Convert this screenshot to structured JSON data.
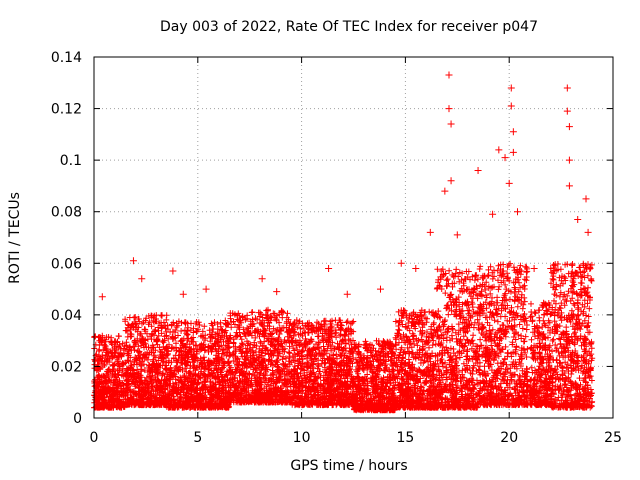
{
  "chart_data": {
    "type": "scatter",
    "title": "Day 003 of 2022, Rate Of TEC Index for receiver p047",
    "xlabel": "GPS time / hours",
    "ylabel": "ROTI / TECUs",
    "xlim": [
      0,
      25
    ],
    "ylim": [
      0,
      0.14
    ],
    "x_ticks": [
      0,
      5,
      10,
      15,
      20,
      25
    ],
    "x_tick_labels": [
      "0",
      "5",
      "10",
      "15",
      "20",
      "25"
    ],
    "y_ticks": [
      0,
      0.02,
      0.04,
      0.06,
      0.08,
      0.1,
      0.12,
      0.14
    ],
    "y_tick_labels": [
      "0",
      "0.02",
      "0.04",
      "0.06",
      "0.08",
      "0.1",
      "0.12",
      "0.14"
    ],
    "grid": true,
    "marker": "+",
    "series": [
      {
        "name": "ROTI",
        "color": "#ff0000",
        "notable_points": [
          {
            "x": 0.4,
            "y": 0.047
          },
          {
            "x": 1.9,
            "y": 0.061
          },
          {
            "x": 2.3,
            "y": 0.054
          },
          {
            "x": 3.8,
            "y": 0.057
          },
          {
            "x": 4.3,
            "y": 0.048
          },
          {
            "x": 5.4,
            "y": 0.05
          },
          {
            "x": 8.1,
            "y": 0.054
          },
          {
            "x": 8.8,
            "y": 0.049
          },
          {
            "x": 11.3,
            "y": 0.058
          },
          {
            "x": 12.2,
            "y": 0.048
          },
          {
            "x": 13.8,
            "y": 0.05
          },
          {
            "x": 14.8,
            "y": 0.06
          },
          {
            "x": 15.5,
            "y": 0.058
          },
          {
            "x": 16.2,
            "y": 0.072
          },
          {
            "x": 16.9,
            "y": 0.088
          },
          {
            "x": 17.1,
            "y": 0.133
          },
          {
            "x": 17.1,
            "y": 0.12
          },
          {
            "x": 17.2,
            "y": 0.114
          },
          {
            "x": 17.2,
            "y": 0.092
          },
          {
            "x": 17.5,
            "y": 0.071
          },
          {
            "x": 18.5,
            "y": 0.096
          },
          {
            "x": 19.2,
            "y": 0.079
          },
          {
            "x": 19.5,
            "y": 0.104
          },
          {
            "x": 19.8,
            "y": 0.101
          },
          {
            "x": 20.1,
            "y": 0.128
          },
          {
            "x": 20.1,
            "y": 0.121
          },
          {
            "x": 20.2,
            "y": 0.111
          },
          {
            "x": 20.2,
            "y": 0.103
          },
          {
            "x": 20.0,
            "y": 0.091
          },
          {
            "x": 20.4,
            "y": 0.08
          },
          {
            "x": 21.2,
            "y": 0.058
          },
          {
            "x": 22.0,
            "y": 0.058
          },
          {
            "x": 22.8,
            "y": 0.128
          },
          {
            "x": 22.8,
            "y": 0.119
          },
          {
            "x": 22.9,
            "y": 0.113
          },
          {
            "x": 22.9,
            "y": 0.1
          },
          {
            "x": 22.9,
            "y": 0.09
          },
          {
            "x": 23.3,
            "y": 0.077
          },
          {
            "x": 23.7,
            "y": 0.085
          },
          {
            "x": 23.8,
            "y": 0.072
          }
        ],
        "envelope": [
          {
            "x_start": 0.0,
            "x_end": 1.5,
            "y_min": 0.004,
            "y_max": 0.032
          },
          {
            "x_start": 1.5,
            "x_end": 3.5,
            "y_min": 0.005,
            "y_max": 0.04
          },
          {
            "x_start": 3.5,
            "x_end": 6.5,
            "y_min": 0.004,
            "y_max": 0.038
          },
          {
            "x_start": 6.5,
            "x_end": 9.5,
            "y_min": 0.006,
            "y_max": 0.042
          },
          {
            "x_start": 9.5,
            "x_end": 12.5,
            "y_min": 0.005,
            "y_max": 0.038
          },
          {
            "x_start": 12.5,
            "x_end": 14.5,
            "y_min": 0.003,
            "y_max": 0.03
          },
          {
            "x_start": 14.5,
            "x_end": 16.5,
            "y_min": 0.004,
            "y_max": 0.042
          },
          {
            "x_start": 16.5,
            "x_end": 18.5,
            "y_min": 0.004,
            "y_max": 0.058
          },
          {
            "x_start": 18.5,
            "x_end": 20.9,
            "y_min": 0.005,
            "y_max": 0.06
          },
          {
            "x_start": 21.0,
            "x_end": 22.0,
            "y_min": 0.005,
            "y_max": 0.045
          },
          {
            "x_start": 22.0,
            "x_end": 24.0,
            "y_min": 0.004,
            "y_max": 0.06
          }
        ]
      }
    ]
  }
}
